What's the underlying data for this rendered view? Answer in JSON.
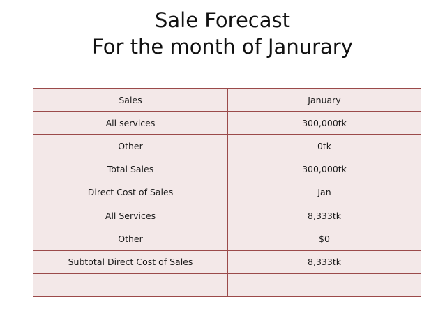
{
  "title": {
    "line1": "Sale Forecast",
    "line2": "For the month of Janurary"
  },
  "table": {
    "rows": [
      {
        "label": "Sales",
        "value": "January"
      },
      {
        "label": "All services",
        "value": "300,000tk"
      },
      {
        "label": "Other",
        "value": "0tk"
      },
      {
        "label": "Total Sales",
        "value": "300,000tk"
      },
      {
        "label": "Direct Cost of Sales",
        "value": "Jan"
      },
      {
        "label": "All Services",
        "value": "8,333tk"
      },
      {
        "label": "Other",
        "value": "$0"
      },
      {
        "label": "Subtotal Direct Cost of Sales",
        "value": "8,333tk"
      },
      {
        "label": "",
        "value": ""
      }
    ],
    "colors": {
      "fill": "#f3e8e8",
      "border": "#9b4a4a"
    }
  }
}
